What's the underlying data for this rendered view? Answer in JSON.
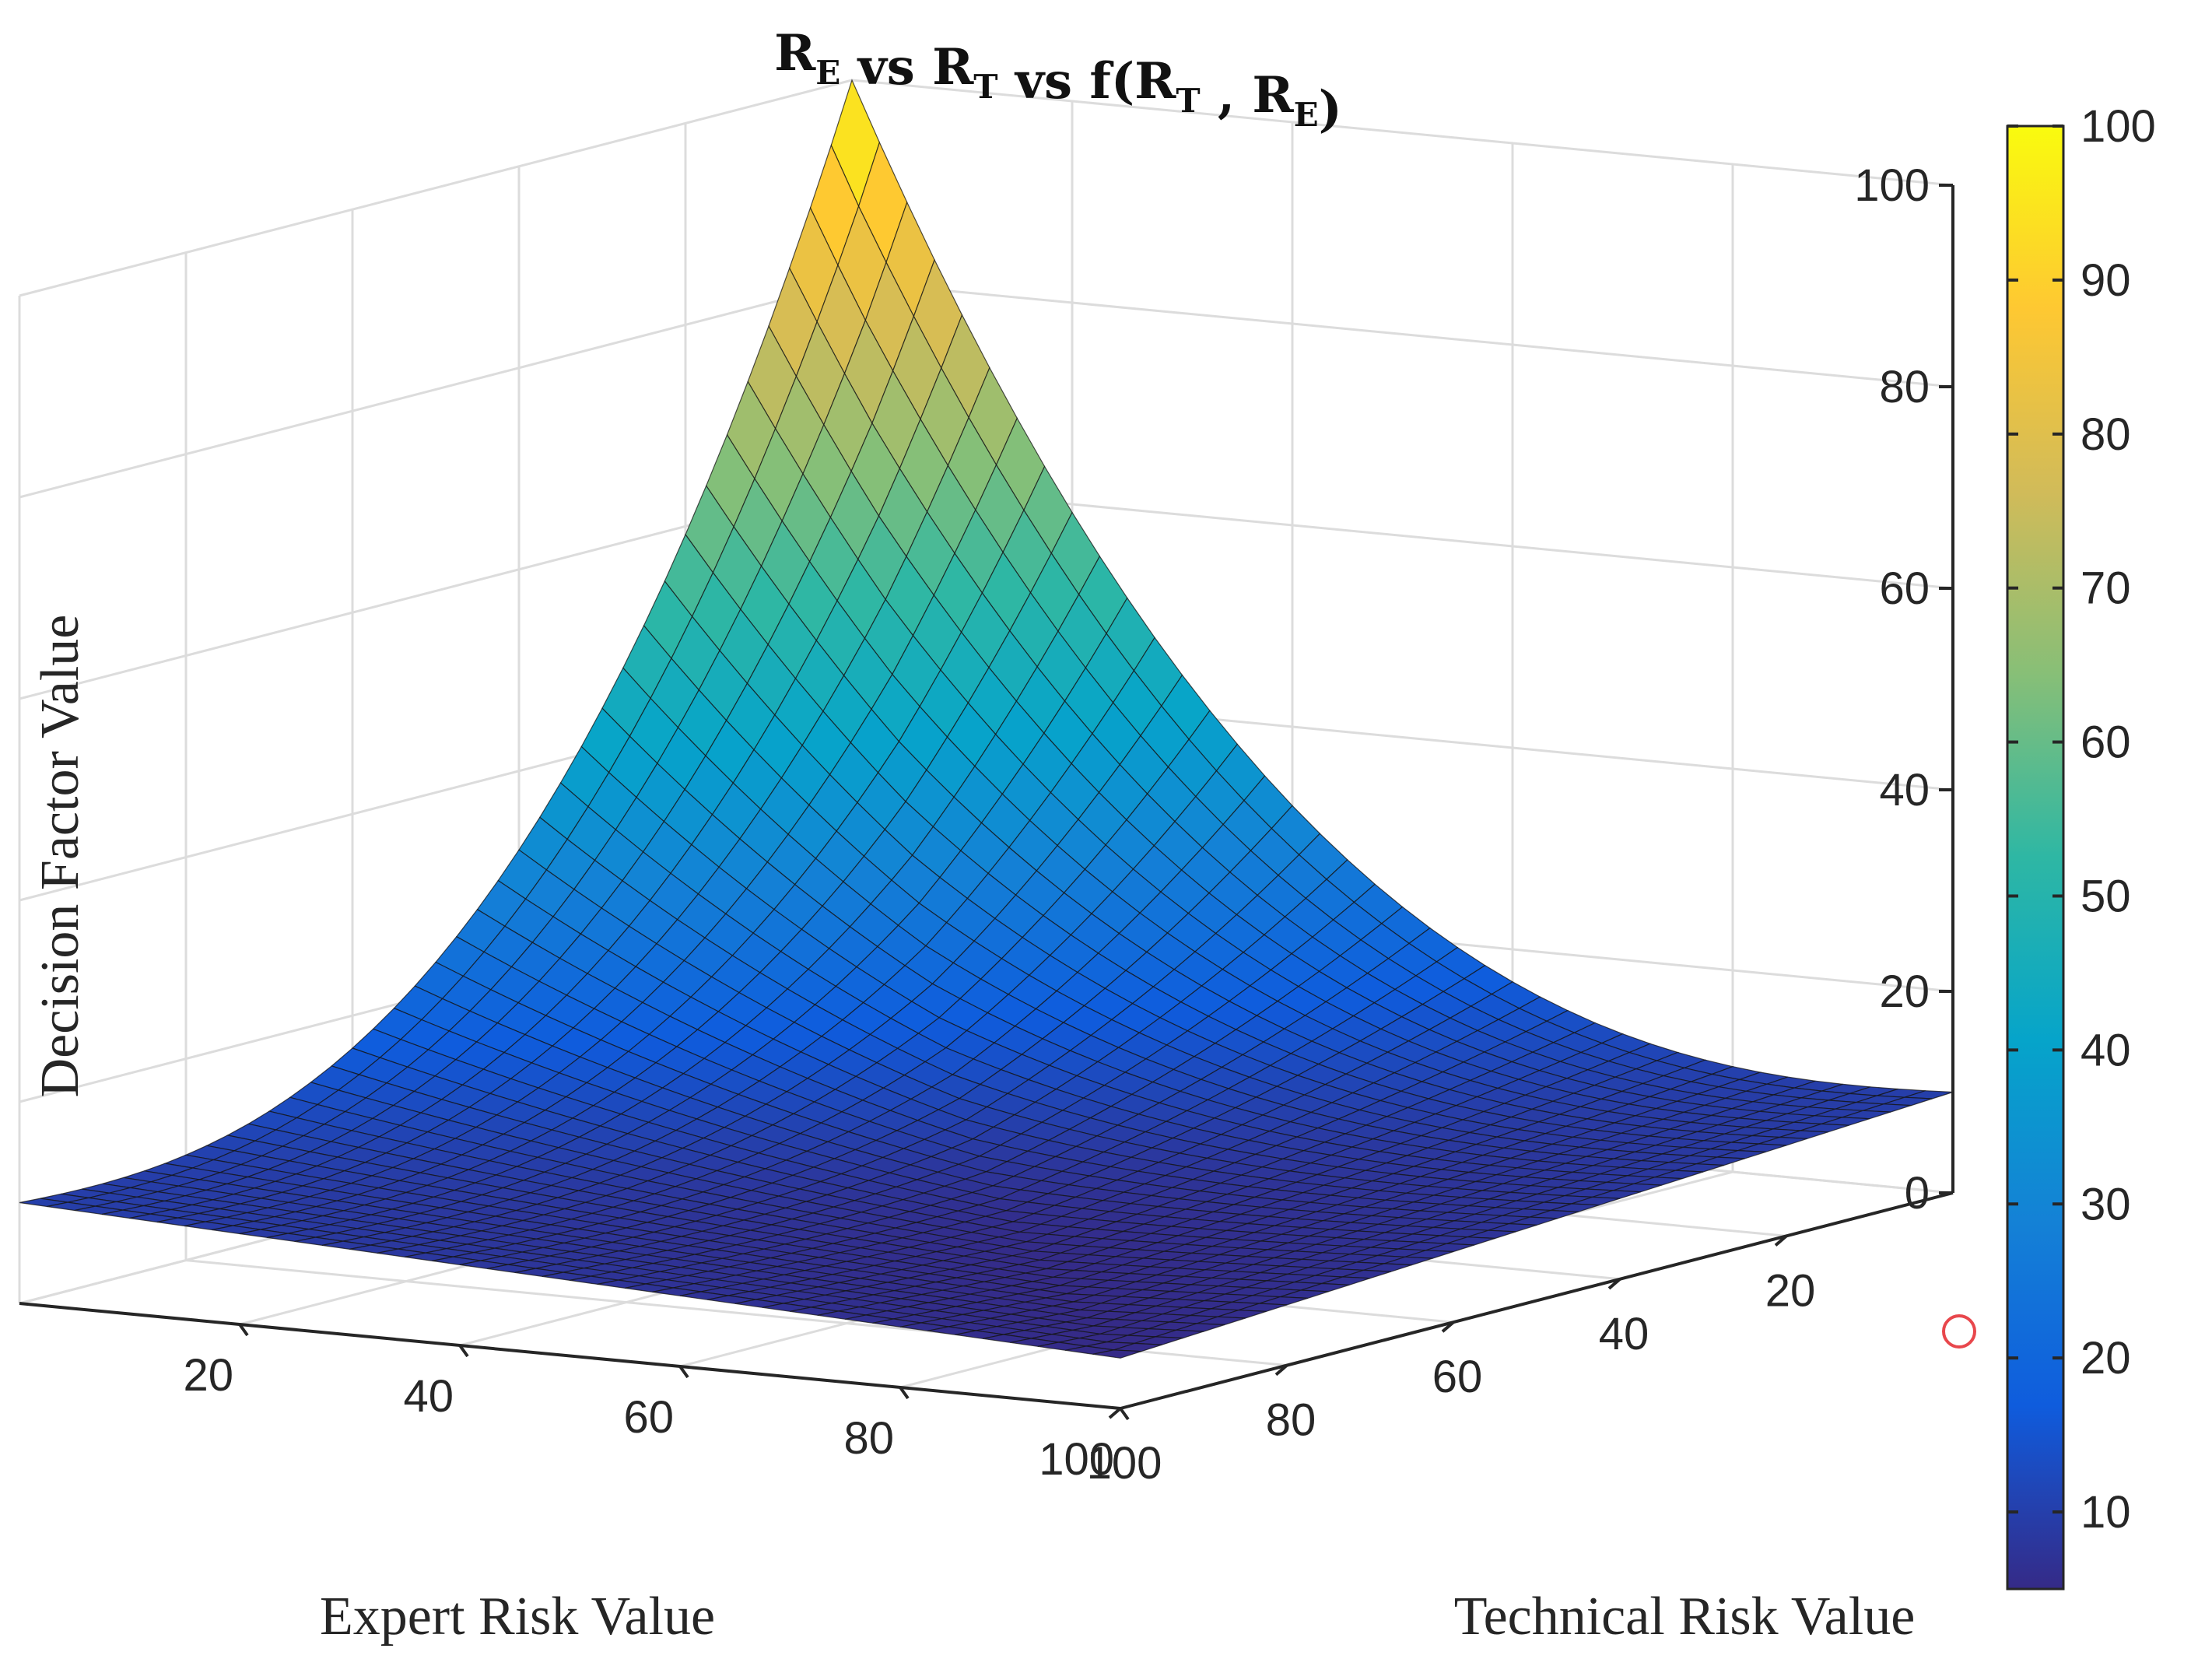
{
  "chart_data": {
    "type": "surface",
    "title": {
      "parts": [
        {
          "text": "R",
          "sub": "E"
        },
        {
          "text": " vs R",
          "sub": "T"
        },
        {
          "text": " vs f(R",
          "sub": "T"
        },
        {
          "text": " , R",
          "sub": "E"
        },
        {
          "text": ")",
          "sub": ""
        }
      ]
    },
    "xlabel": "Expert Risk Value",
    "ylabel": "Technical Risk Value",
    "zlabel": "Decision Factor Value",
    "xlim": [
      0,
      100
    ],
    "ylim": [
      0,
      100
    ],
    "zlim": [
      0,
      100
    ],
    "xticks": [
      20,
      40,
      60,
      80,
      100
    ],
    "yticks": [
      20,
      40,
      60,
      80,
      100
    ],
    "zticks": [
      0,
      20,
      40,
      60,
      80,
      100
    ],
    "grid": true,
    "colormap": "parula",
    "colorbar": {
      "ticks": [
        10,
        20,
        30,
        40,
        50,
        60,
        70,
        80,
        90,
        100
      ],
      "range": [
        5,
        100
      ],
      "placement": "right"
    },
    "surface": {
      "grid_values": [
        0,
        5,
        10,
        15,
        20,
        25,
        30,
        35,
        40,
        45,
        50,
        55,
        60,
        65,
        70,
        75,
        80,
        85,
        90,
        95,
        100
      ],
      "function": "f(R_T, R_E)",
      "samples": [
        {
          "expert": 100,
          "technical": 0,
          "value": 10
        },
        {
          "expert": 0,
          "technical": 100,
          "value": 10
        },
        {
          "expert": 100,
          "technical": 100,
          "value": 5
        },
        {
          "expert": 0,
          "technical": 0,
          "value": 100
        },
        {
          "expert": 50,
          "technical": 50,
          "value": 5
        }
      ]
    }
  },
  "colors": {
    "background": "#ffffff",
    "axis": "#262626",
    "grid": "#dcdcdc",
    "mesh_edge": "#141414",
    "highlight_marker": "#e8474c",
    "parula": [
      "#352a87",
      "#0f5cdd",
      "#1481d6",
      "#06a4ca",
      "#2eb7a4",
      "#87bf77",
      "#d1bb59",
      "#fec832",
      "#f9fb0e"
    ]
  }
}
